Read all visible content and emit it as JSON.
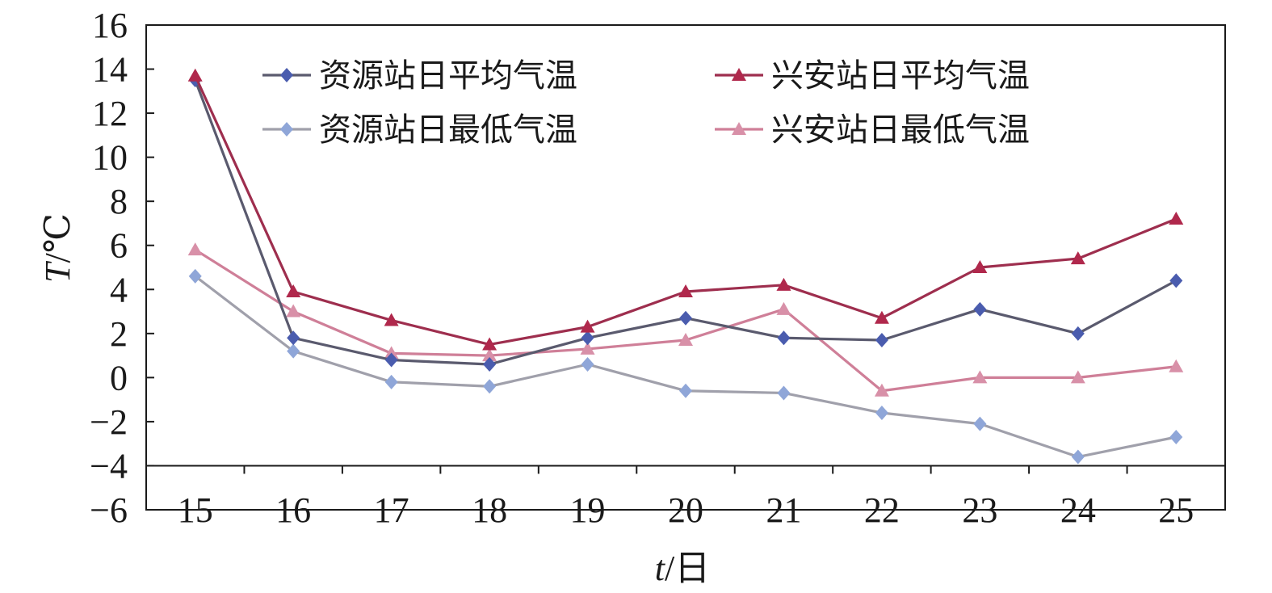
{
  "chart_data": {
    "type": "line",
    "x": [
      15,
      16,
      17,
      18,
      19,
      20,
      21,
      22,
      23,
      24,
      25
    ],
    "xlabel": "t/日",
    "ylabel": "T/℃",
    "xlim": [
      15,
      25
    ],
    "ylim": [
      -6,
      16
    ],
    "yticks": [
      -6,
      -4,
      -2,
      0,
      2,
      4,
      6,
      8,
      10,
      12,
      14,
      16
    ],
    "grid": false,
    "legend_position": "top",
    "series": [
      {
        "name": "资源站日平均气温",
        "values": [
          13.5,
          1.8,
          0.8,
          0.6,
          1.8,
          2.7,
          1.8,
          1.7,
          3.1,
          2.0,
          4.4
        ],
        "color": "#4a5cae",
        "line_color": "#5a5a6e",
        "marker": "diamond"
      },
      {
        "name": "兴安站日平均气温",
        "values": [
          13.7,
          3.9,
          2.6,
          1.5,
          2.3,
          3.9,
          4.2,
          2.7,
          5.0,
          5.4,
          7.2
        ],
        "color": "#b0284c",
        "line_color": "#9e2e4e",
        "marker": "triangle"
      },
      {
        "name": "资源站日最低气温",
        "values": [
          4.6,
          1.2,
          -0.2,
          -0.4,
          0.6,
          -0.6,
          -0.7,
          -1.6,
          -2.1,
          -3.6,
          -2.7
        ],
        "color": "#8fa6d8",
        "line_color": "#a0a0ab",
        "marker": "diamond"
      },
      {
        "name": "兴安站日最低气温",
        "values": [
          5.8,
          3.0,
          1.1,
          1.0,
          1.3,
          1.7,
          3.1,
          -0.6,
          0.0,
          0.0,
          0.5
        ],
        "color": "#d890a8",
        "line_color": "#cf7f98",
        "marker": "triangle"
      }
    ]
  }
}
